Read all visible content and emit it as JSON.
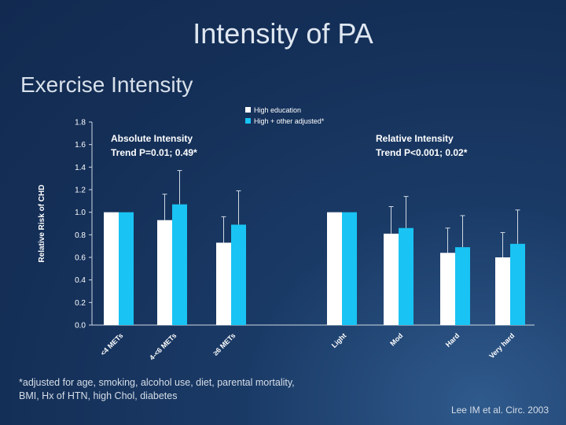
{
  "slide": {
    "title": "Intensity of PA",
    "subtitle": "Exercise Intensity",
    "footnote_line1": "*adjusted for age, smoking, alcohol use, diet, parental mortality,",
    "footnote_line2": "BMI, Hx of HTN, high Chol, diabetes",
    "citation": "Lee IM et al. Circ. 2003"
  },
  "chart_data": {
    "type": "bar",
    "ylabel": "Relative Risk of CHD",
    "ylim": [
      0,
      1.8
    ],
    "yticks": [
      "0.0",
      "0.2",
      "0.4",
      "0.6",
      "0.8",
      "1.0",
      "1.2",
      "1.4",
      "1.6",
      "1.8"
    ],
    "legend": [
      "High education",
      "High + other adjusted*"
    ],
    "legend_position": "top-center",
    "colors": [
      "#ffffff",
      "#19c3f3"
    ],
    "groups": [
      {
        "annotation_line1": "Absolute Intensity",
        "annotation_line2": "Trend P=0.01; 0.49*",
        "categories": [
          "<4 METs",
          "4-<6 METs",
          "≥6 METs"
        ],
        "series": [
          {
            "name": "High education",
            "values": [
              1.0,
              0.93,
              0.73
            ],
            "err": [
              0,
              0.23,
              0.23
            ]
          },
          {
            "name": "High + other adjusted*",
            "values": [
              1.0,
              1.07,
              0.89
            ],
            "err": [
              0,
              0.3,
              0.3
            ]
          }
        ]
      },
      {
        "annotation_line1": "Relative Intensity",
        "annotation_line2": "Trend P<0.001; 0.02*",
        "categories": [
          "Light",
          "Mod",
          "Hard",
          "Very hard"
        ],
        "series": [
          {
            "name": "High education",
            "values": [
              1.0,
              0.81,
              0.64,
              0.6
            ],
            "err": [
              0,
              0.24,
              0.22,
              0.22
            ]
          },
          {
            "name": "High + other adjusted*",
            "values": [
              1.0,
              0.86,
              0.69,
              0.72
            ],
            "err": [
              0,
              0.28,
              0.28,
              0.3
            ]
          }
        ]
      }
    ]
  }
}
